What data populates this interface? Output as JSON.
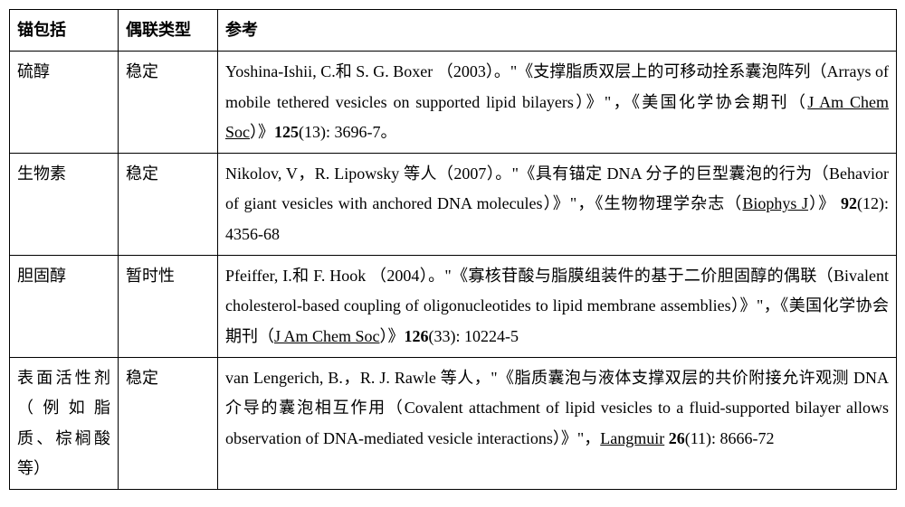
{
  "table": {
    "headers": {
      "col1": "锚包括",
      "col2": "偶联类型",
      "col3": "参考"
    },
    "rows": [
      {
        "anchor": "硫醇",
        "coupling": "稳定",
        "ref_part1": "Yoshina-Ishii, C.和 S. G. Boxer （2003）。\"《支撑脂质双层上的可移动拴系囊泡阵列（Arrays of mobile tethered vesicles on supported lipid bilayers）》\"，《美国化学协会期刊（",
        "ref_journal": "J Am Chem Soc",
        "ref_part2": "）》",
        "ref_vol": "125",
        "ref_part3": "(13): 3696-7。"
      },
      {
        "anchor": "生物素",
        "coupling": "稳定",
        "ref_part1": "Nikolov, V，R. Lipowsky 等人（2007）。\"《具有锚定 DNA 分子的巨型囊泡的行为（Behavior of giant vesicles with anchored DNA molecules）》\"，《生物物理学杂志（",
        "ref_journal": "Biophys J",
        "ref_part2": "）》  ",
        "ref_vol": "92",
        "ref_part3": "(12): 4356-68"
      },
      {
        "anchor": "胆固醇",
        "coupling": "暂时性",
        "ref_part1": "Pfeiffer, I.和 F. Hook （2004）。\"《寡核苷酸与脂膜组装件的基于二价胆固醇的偶联（Bivalent cholesterol-based coupling of oligonucleotides to lipid membrane assemblies）》\"，《美国化学协会期刊（",
        "ref_journal": "J Am Chem Soc",
        "ref_part2": "）》",
        "ref_vol": "126",
        "ref_part3": "(33): 10224-5"
      },
      {
        "anchor": "表面活性剂（例如脂质、棕榈酸等）",
        "coupling": "稳定",
        "ref_part1": "van Lengerich, B.，R. J. Rawle 等人，\"《脂质囊泡与液体支撑双层的共价附接允许观测 DNA 介导的囊泡相互作用（Covalent attachment of lipid vesicles to a fluid-supported bilayer allows observation of DNA-mediated vesicle interactions）》\"，",
        "ref_journal": "Langmuir",
        "ref_part2": " ",
        "ref_vol": "26",
        "ref_part3": "(11): 8666-72"
      }
    ]
  }
}
